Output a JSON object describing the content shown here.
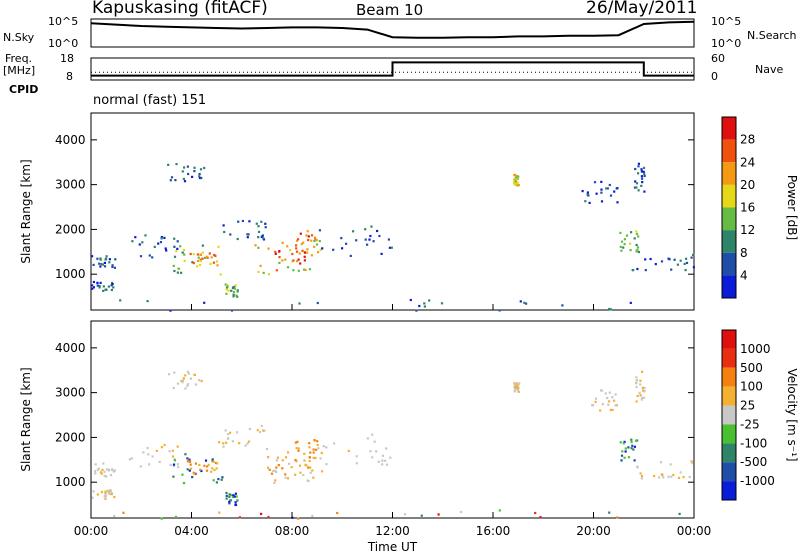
{
  "header": {
    "station": "Kapuskasing (fitACF)",
    "beam": "Beam 10",
    "date": "26/May/2011"
  },
  "left_labels": {
    "nsky": "N.Sky",
    "freq": "Freq.",
    "mhz": "[MHz]",
    "cpid": "CPID"
  },
  "right_labels": {
    "nsearch": "N.Search",
    "nave": "Nave"
  },
  "mode_text": "normal (fast) 151",
  "chart_data": [
    {
      "type": "line",
      "name": "noise-panel",
      "y_ticks_left": [
        "10^5",
        "10^0"
      ],
      "y_ticks_right": [
        "10^5",
        "10^0"
      ],
      "x": [
        0,
        1,
        2,
        3,
        4,
        5,
        6,
        7,
        8,
        9,
        10,
        11,
        12,
        13,
        14,
        15,
        16,
        17,
        18,
        19,
        20,
        21,
        22,
        23,
        24
      ],
      "values": [
        0.85,
        0.8,
        0.75,
        0.72,
        0.7,
        0.68,
        0.66,
        0.68,
        0.7,
        0.7,
        0.68,
        0.62,
        0.35,
        0.33,
        0.33,
        0.35,
        0.35,
        0.38,
        0.38,
        0.4,
        0.4,
        0.42,
        0.82,
        0.88,
        0.9
      ]
    },
    {
      "type": "line",
      "name": "freq-panel",
      "y_ticks_left": [
        "18",
        "8"
      ],
      "y_ticks_right": [
        "60",
        "0"
      ],
      "x": [
        0,
        12,
        12,
        22,
        22,
        24
      ],
      "values": [
        10,
        10,
        16,
        16,
        10,
        10
      ]
    },
    {
      "type": "heatmap",
      "name": "power",
      "ylabel": "Slant Range [km]",
      "y_ticks": [
        1000,
        2000,
        3000,
        4000
      ],
      "ylim": [
        200,
        4600
      ],
      "xlim": [
        0,
        24
      ],
      "colorbar_label": "Power [dB]",
      "colorbar_ticks": [
        "4",
        "8",
        "12",
        "16",
        "20",
        "24",
        "28"
      ],
      "colors": [
        "#0a1cd8",
        "#1e4ea8",
        "#2e8466",
        "#66bb44",
        "#e4d818",
        "#f49a12",
        "#f05010",
        "#e01010"
      ]
    },
    {
      "type": "heatmap",
      "name": "velocity",
      "ylabel": "Slant Range [km]",
      "y_ticks": [
        1000,
        2000,
        3000,
        4000
      ],
      "ylim": [
        200,
        4600
      ],
      "xlim": [
        0,
        24
      ],
      "colorbar_label": "Velocity [m s⁻¹]",
      "colorbar_ticks": [
        "1000",
        "500",
        "100",
        "25",
        "-25",
        "-100",
        "-500",
        "-1000"
      ],
      "colors": [
        "#0a1cd8",
        "#1e4ea8",
        "#2e8466",
        "#48c030",
        "#c8c8c8",
        "#f4b030",
        "#f48010",
        "#e83010",
        "#e01010"
      ]
    }
  ],
  "x_axis": {
    "ticks": [
      "00:00",
      "04:00",
      "08:00",
      "12:00",
      "16:00",
      "20:00",
      "00:00"
    ],
    "label": "Time UT"
  }
}
